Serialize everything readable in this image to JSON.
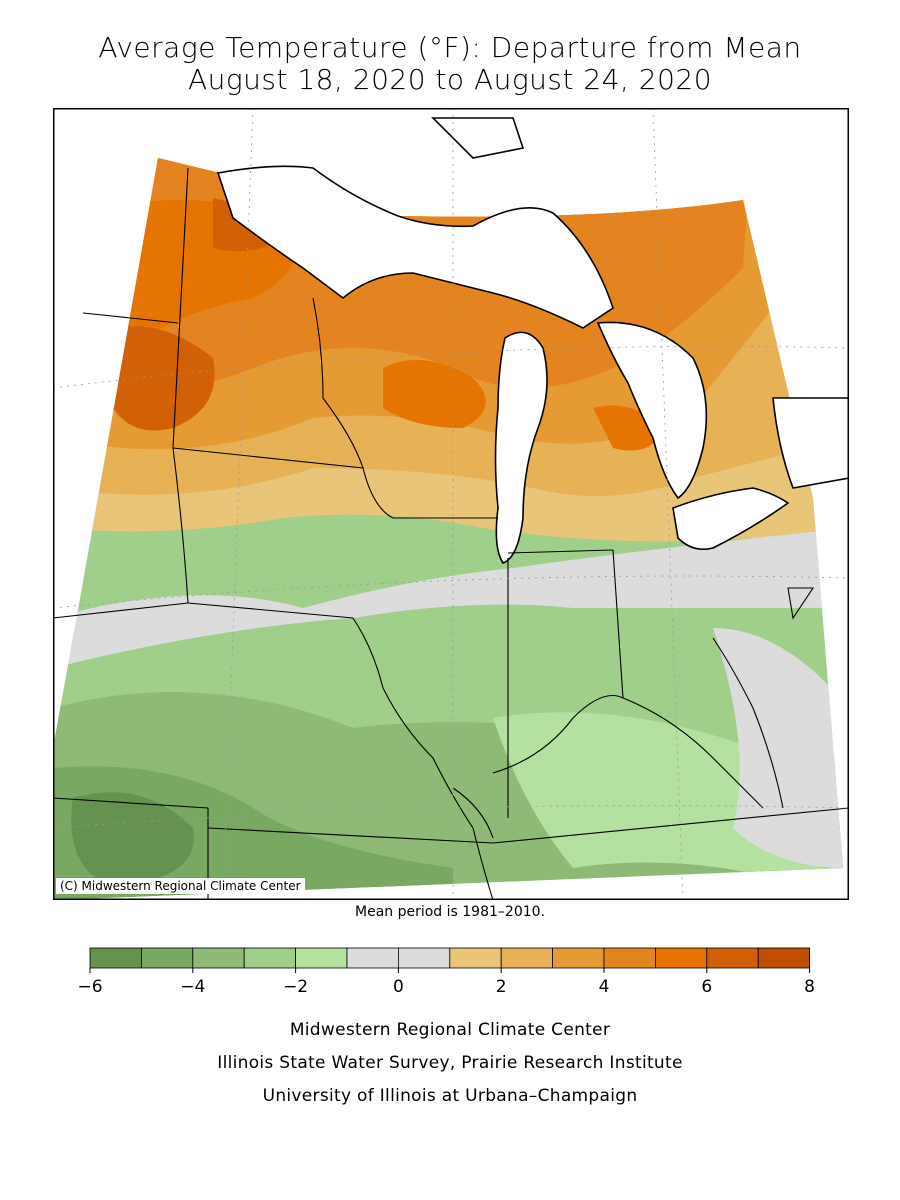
{
  "title": {
    "line1": "Average Temperature (°F): Departure from Mean",
    "line2": "August 18, 2020 to August 24, 2020"
  },
  "map": {
    "copyright": "(C) Midwestern Regional Climate Center",
    "mean_period": "Mean period is 1981–2010."
  },
  "legend": {
    "colors": [
      "#659250",
      "#78a862",
      "#8fb977",
      "#a0ce8b",
      "#b4e0a0",
      "#dcdcdc",
      "#dcdcdc",
      "#e8c579",
      "#e7b156",
      "#e59a33",
      "#e48420",
      "#e57400",
      "#d16006",
      "#c04e00"
    ],
    "ticks": [
      "−6",
      "−4",
      "−2",
      "0",
      "2",
      "4",
      "6",
      "8"
    ]
  },
  "credits": {
    "line1": "Midwestern Regional Climate Center",
    "line2": "Illinois State Water Survey, Prairie Research Institute",
    "line3": "University of Illinois at Urbana–Champaign"
  }
}
